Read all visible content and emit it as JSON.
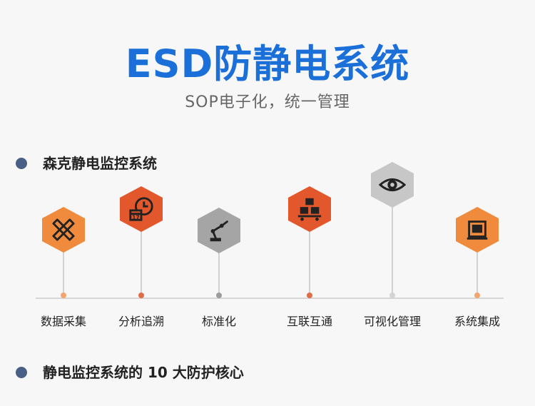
{
  "header": {
    "title": "ESD防静电系统",
    "subtitle": "SOP电子化，统一管理"
  },
  "section1": {
    "label": "森克静电监控系统"
  },
  "section2": {
    "label": "静电监控系统的 10 大防护核心"
  },
  "colors": {
    "title_blue": "#1b6fd8",
    "orange": "#f08a3c",
    "red_orange": "#e2572b",
    "gray": "#a5a5a5",
    "dot": "#4a5f86"
  },
  "features": [
    {
      "label": "数据采集",
      "icon": "ruler-pencil-icon",
      "color": "#f08a3c"
    },
    {
      "label": "分析追溯",
      "icon": "calendar-clock-icon",
      "color": "#e2572b"
    },
    {
      "label": "标准化",
      "icon": "robot-arm-icon",
      "color": "#a5a5a5"
    },
    {
      "label": "互联互通",
      "icon": "boxes-cart-icon",
      "color": "#e2572b"
    },
    {
      "label": "可视化管理",
      "icon": "eye-icon",
      "color": "#c7c7c7"
    },
    {
      "label": "系统集成",
      "icon": "monitor-frame-icon",
      "color": "#f08a3c"
    }
  ]
}
